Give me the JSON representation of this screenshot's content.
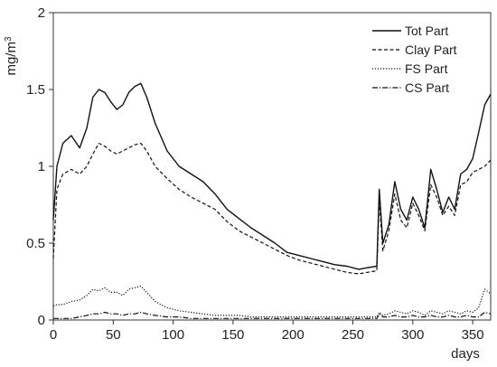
{
  "chart_data": {
    "type": "line",
    "title": "",
    "xlabel": "days",
    "ylabel_base": "mg/m",
    "ylabel_exp": "3",
    "xlim": [
      0,
      365
    ],
    "ylim": [
      0,
      2
    ],
    "xticks": [
      "0",
      "50",
      "100",
      "150",
      "200",
      "250",
      "300",
      "350"
    ],
    "yticks": [
      "0",
      "0.5",
      "1",
      "1.5",
      "2"
    ],
    "grid": false,
    "legend_position": "top-right",
    "x": [
      0,
      3,
      8,
      15,
      22,
      28,
      33,
      38,
      43,
      48,
      53,
      58,
      63,
      68,
      73,
      78,
      85,
      95,
      105,
      115,
      125,
      135,
      145,
      155,
      165,
      175,
      185,
      195,
      205,
      215,
      225,
      235,
      245,
      255,
      262,
      270,
      272,
      275,
      280,
      285,
      290,
      295,
      300,
      305,
      310,
      315,
      320,
      325,
      330,
      335,
      340,
      345,
      350,
      355,
      360,
      365
    ],
    "series": [
      {
        "name": "Tot Part",
        "style": "solid",
        "values": [
          0.65,
          1.0,
          1.15,
          1.2,
          1.12,
          1.25,
          1.45,
          1.5,
          1.48,
          1.42,
          1.37,
          1.4,
          1.48,
          1.52,
          1.54,
          1.45,
          1.28,
          1.1,
          1.0,
          0.95,
          0.9,
          0.82,
          0.72,
          0.66,
          0.6,
          0.55,
          0.5,
          0.44,
          0.42,
          0.4,
          0.38,
          0.36,
          0.35,
          0.33,
          0.34,
          0.35,
          0.85,
          0.5,
          0.62,
          0.9,
          0.72,
          0.65,
          0.8,
          0.72,
          0.6,
          0.98,
          0.85,
          0.7,
          0.8,
          0.72,
          0.95,
          0.98,
          1.05,
          1.22,
          1.4,
          1.47
        ]
      },
      {
        "name": "Clay Part",
        "style": "dashed",
        "values": [
          0.4,
          0.85,
          0.95,
          0.98,
          0.95,
          1.0,
          1.08,
          1.15,
          1.13,
          1.1,
          1.08,
          1.1,
          1.12,
          1.14,
          1.15,
          1.1,
          1.0,
          0.92,
          0.85,
          0.8,
          0.76,
          0.72,
          0.64,
          0.58,
          0.54,
          0.5,
          0.46,
          0.42,
          0.39,
          0.37,
          0.35,
          0.33,
          0.31,
          0.3,
          0.31,
          0.32,
          0.78,
          0.45,
          0.58,
          0.82,
          0.65,
          0.6,
          0.76,
          0.68,
          0.58,
          0.88,
          0.8,
          0.68,
          0.74,
          0.68,
          0.88,
          0.9,
          0.96,
          0.98,
          1.0,
          1.04
        ]
      },
      {
        "name": "FS Part",
        "style": "dotted",
        "values": [
          0.09,
          0.1,
          0.1,
          0.12,
          0.13,
          0.16,
          0.2,
          0.19,
          0.21,
          0.18,
          0.18,
          0.16,
          0.2,
          0.21,
          0.22,
          0.18,
          0.12,
          0.08,
          0.06,
          0.05,
          0.04,
          0.03,
          0.03,
          0.03,
          0.02,
          0.02,
          0.02,
          0.02,
          0.02,
          0.02,
          0.02,
          0.02,
          0.02,
          0.02,
          0.02,
          0.02,
          0.05,
          0.03,
          0.04,
          0.06,
          0.05,
          0.04,
          0.06,
          0.05,
          0.03,
          0.06,
          0.05,
          0.04,
          0.06,
          0.05,
          0.04,
          0.06,
          0.05,
          0.08,
          0.2,
          0.17
        ]
      },
      {
        "name": "CS Part",
        "style": "dashdot",
        "values": [
          0.01,
          0.01,
          0.01,
          0.01,
          0.02,
          0.03,
          0.04,
          0.04,
          0.05,
          0.04,
          0.04,
          0.03,
          0.04,
          0.04,
          0.05,
          0.04,
          0.03,
          0.02,
          0.02,
          0.01,
          0.01,
          0.01,
          0.01,
          0.01,
          0.01,
          0.01,
          0.01,
          0.01,
          0.01,
          0.01,
          0.01,
          0.01,
          0.01,
          0.01,
          0.01,
          0.01,
          0.04,
          0.02,
          0.02,
          0.03,
          0.02,
          0.02,
          0.03,
          0.02,
          0.02,
          0.03,
          0.02,
          0.02,
          0.03,
          0.02,
          0.02,
          0.03,
          0.02,
          0.02,
          0.05,
          0.04
        ]
      }
    ]
  }
}
